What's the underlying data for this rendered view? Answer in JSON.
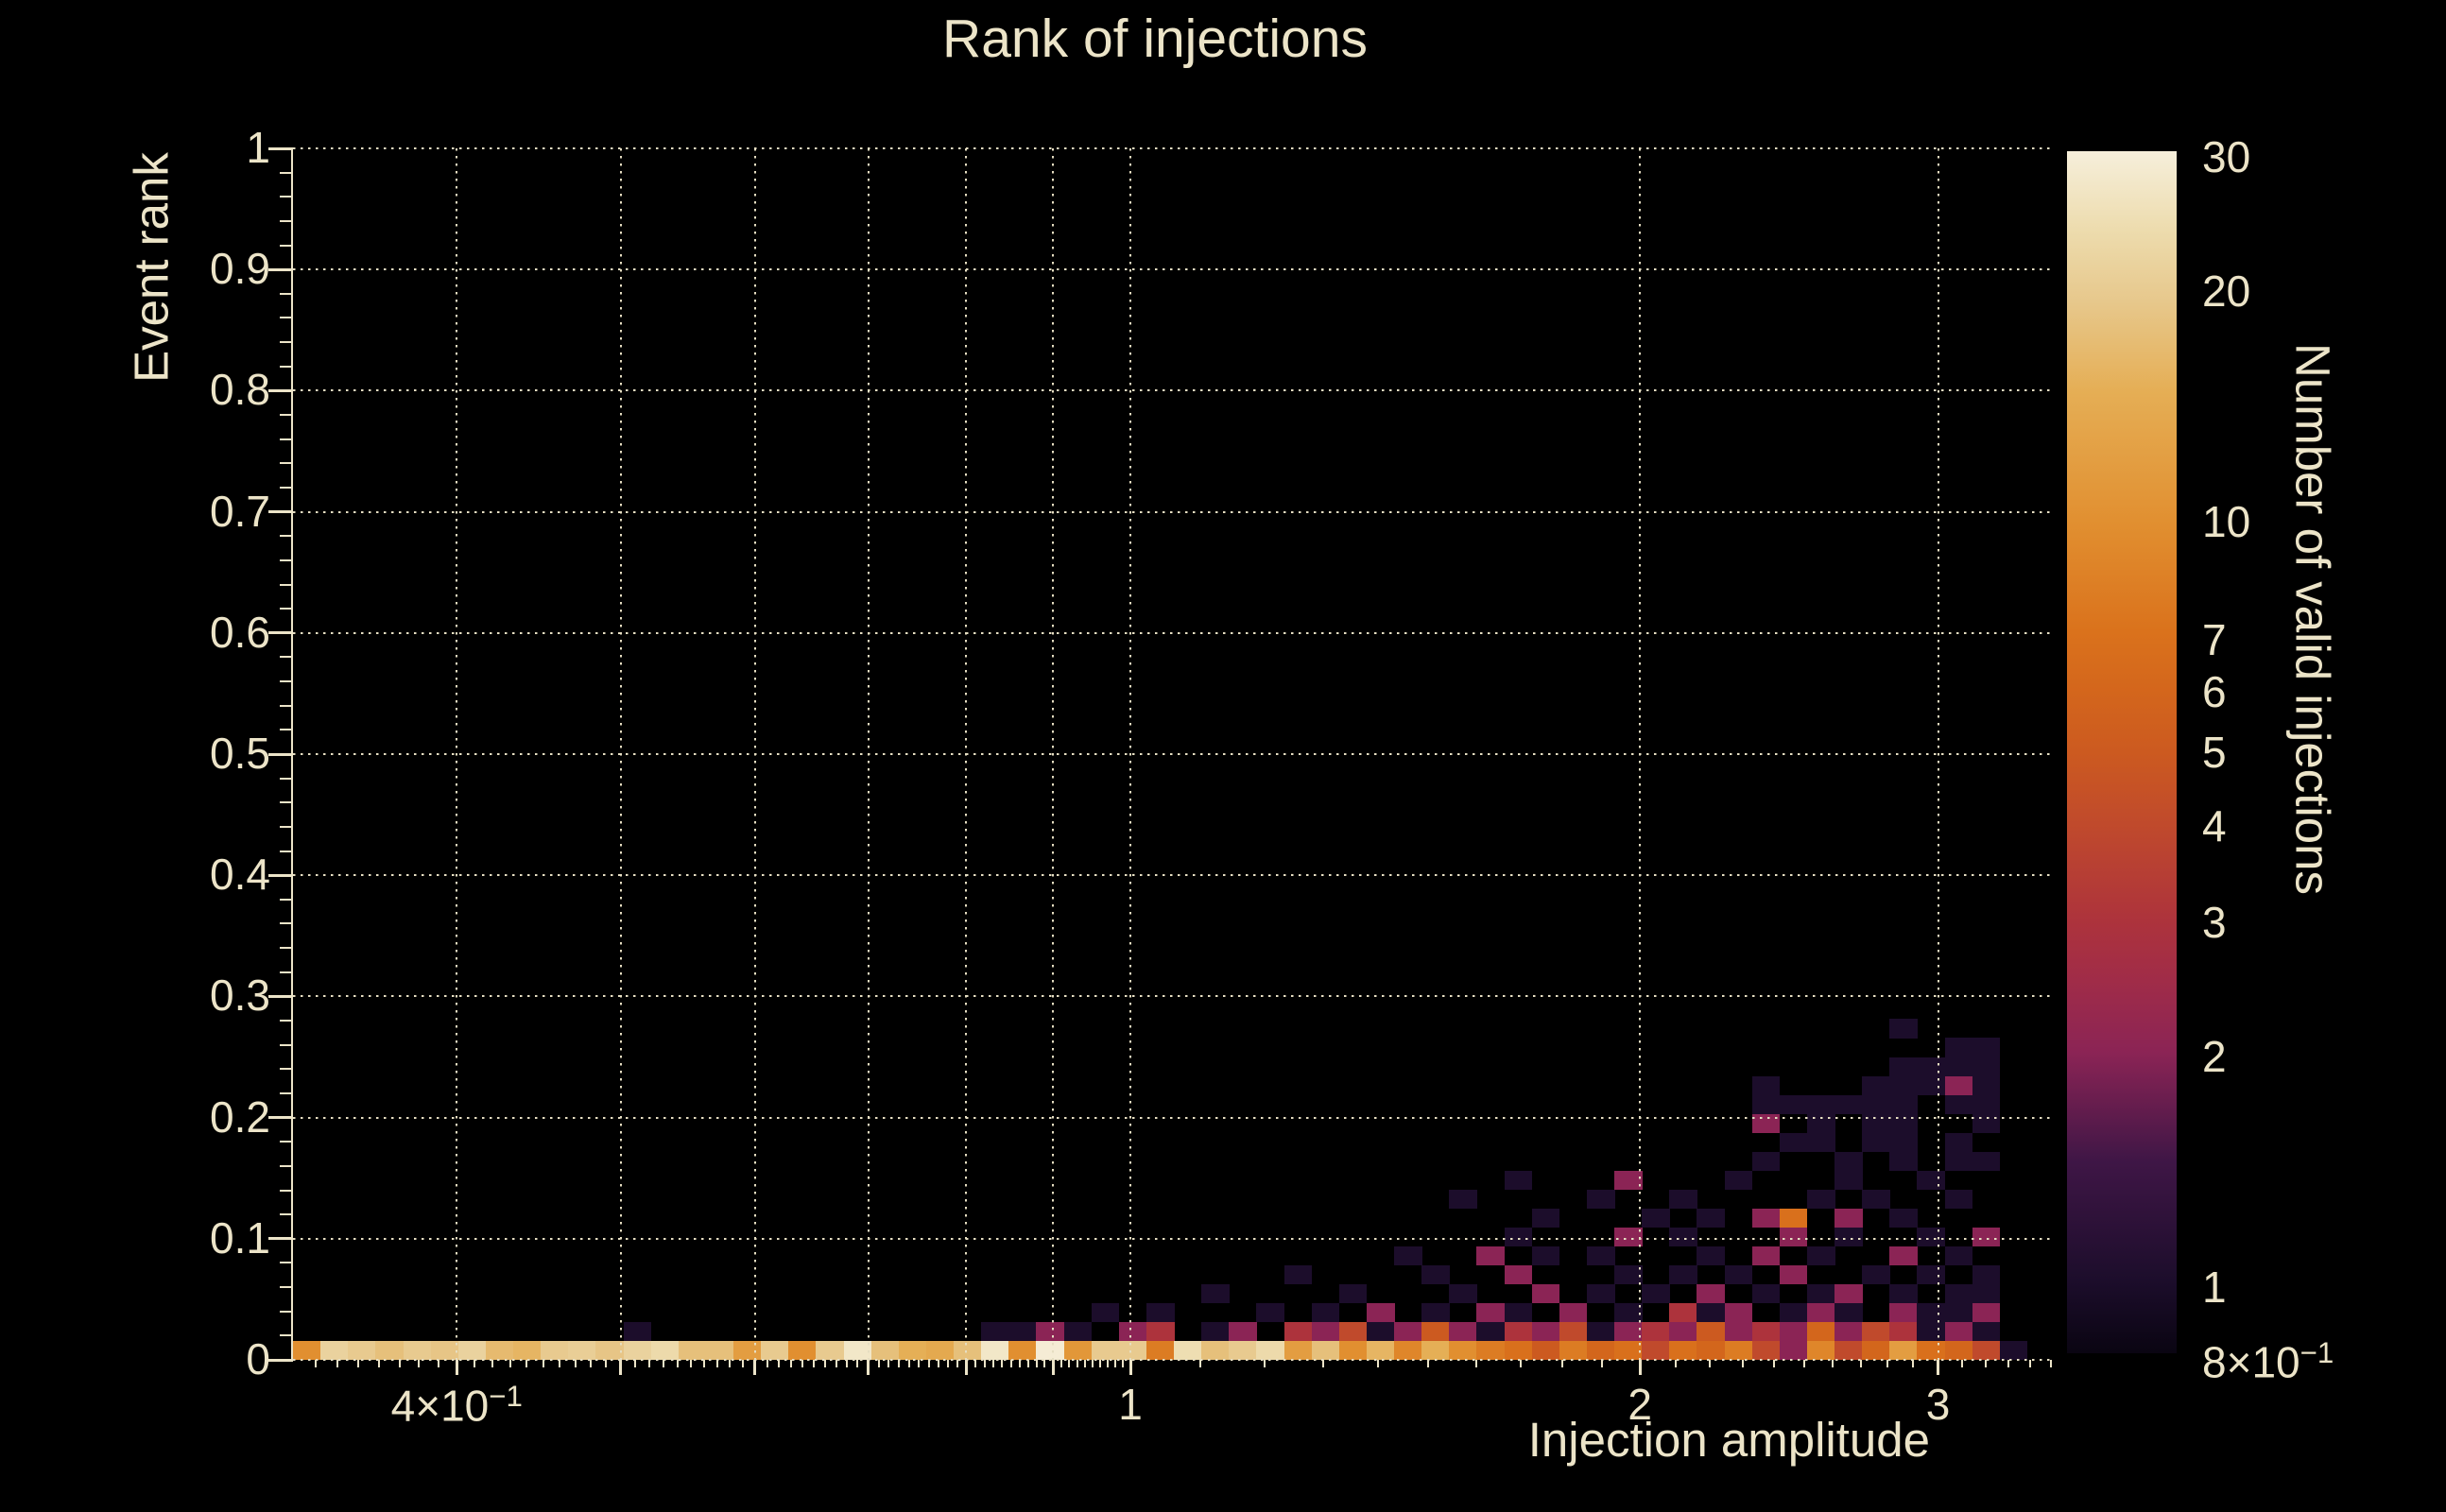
{
  "colors": {
    "background": "#000000",
    "text": "#ece4c8",
    "grid": "#e6dec2",
    "axis": "#ece4c8",
    "bar_tick": "#000000"
  },
  "chart_data": {
    "type": "heatmap",
    "title": "Rank of injections",
    "xlabel": "Injection amplitude",
    "ylabel": "Event rank",
    "zlabel": "Number of valid injections",
    "x_scale": "log",
    "x_range": [
      0.32,
      3.52
    ],
    "y_range": [
      0,
      1
    ],
    "z_scale": "log",
    "z_range": [
      0.8,
      31
    ],
    "n_bins_x": 64,
    "n_bins_y": 64,
    "grid_on": true,
    "x_ticks": [
      {
        "v": 0.4,
        "base": "4×10",
        "exp": "−1"
      },
      {
        "v": 1,
        "base": "1",
        "exp": ""
      },
      {
        "v": 2,
        "base": "2",
        "exp": ""
      },
      {
        "v": 3,
        "base": "3",
        "exp": ""
      }
    ],
    "y_ticks": [
      {
        "v": 1,
        "label": "1"
      },
      {
        "v": 0.9,
        "label": "0.9"
      },
      {
        "v": 0.8,
        "label": "0.8"
      },
      {
        "v": 0.7,
        "label": "0.7"
      },
      {
        "v": 0.6,
        "label": "0.6"
      },
      {
        "v": 0.5,
        "label": "0.5"
      },
      {
        "v": 0.4,
        "label": "0.4"
      },
      {
        "v": 0.3,
        "label": "0.3"
      },
      {
        "v": 0.2,
        "label": "0.2"
      },
      {
        "v": 0.1,
        "label": "0.1"
      },
      {
        "v": 0,
        "label": "0"
      }
    ],
    "z_ticks": [
      {
        "v": 30,
        "base": "30",
        "exp": ""
      },
      {
        "v": 20,
        "base": "20",
        "exp": ""
      },
      {
        "v": 10,
        "base": "10",
        "exp": ""
      },
      {
        "v": 9
      },
      {
        "v": 8
      },
      {
        "v": 7,
        "base": "7",
        "exp": ""
      },
      {
        "v": 6,
        "base": "6",
        "exp": ""
      },
      {
        "v": 5,
        "base": "5",
        "exp": ""
      },
      {
        "v": 4,
        "base": "4",
        "exp": ""
      },
      {
        "v": 3,
        "base": "3",
        "exp": ""
      },
      {
        "v": 2,
        "base": "2",
        "exp": ""
      },
      {
        "v": 1,
        "base": "1",
        "exp": ""
      },
      {
        "v": 0.9
      },
      {
        "v": 0.8,
        "base": "8×10",
        "exp": "−1"
      }
    ],
    "grid_x_values": [
      0.4,
      0.5,
      0.6,
      0.7,
      0.8,
      0.9,
      1,
      2,
      3
    ],
    "grid_y_values": [
      0,
      0.1,
      0.2,
      0.3,
      0.4,
      0.5,
      0.6,
      0.7,
      0.8,
      0.9,
      1
    ],
    "palette_stops": [
      {
        "t": 0.0,
        "color": "#0a0512"
      },
      {
        "t": 0.06,
        "color": "#1c0d2b"
      },
      {
        "t": 0.16,
        "color": "#3f1646"
      },
      {
        "t": 0.25,
        "color": "#8b2455"
      },
      {
        "t": 0.31,
        "color": "#a02c48"
      },
      {
        "t": 0.36,
        "color": "#ad333c"
      },
      {
        "t": 0.44,
        "color": "#c04a2c"
      },
      {
        "t": 0.5,
        "color": "#cc5a20"
      },
      {
        "t": 0.555,
        "color": "#d4671c"
      },
      {
        "t": 0.6,
        "color": "#da721c"
      },
      {
        "t": 0.69,
        "color": "#e18f30"
      },
      {
        "t": 0.8,
        "color": "#e5ae55"
      },
      {
        "t": 0.875,
        "color": "#e7c88c"
      },
      {
        "t": 0.935,
        "color": "#eddcae"
      },
      {
        "t": 1.0,
        "color": "#f6efdb"
      }
    ],
    "bottom_row": [
      10,
      22,
      20,
      18,
      20,
      19,
      22,
      17,
      16,
      20,
      21,
      19,
      22,
      24,
      18,
      18,
      12,
      20,
      10,
      20,
      28,
      18,
      15,
      14,
      18,
      28,
      10,
      30,
      11,
      20,
      20,
      8,
      25,
      18,
      20,
      24,
      12,
      18,
      10,
      16,
      9,
      15,
      10,
      8,
      7,
      5,
      8,
      6,
      7,
      4,
      7,
      6,
      8,
      4,
      2,
      9,
      4,
      6,
      12,
      7,
      6,
      4,
      1,
      0
    ],
    "cells": [
      [
        12,
        1,
        1
      ],
      [
        25,
        1,
        1
      ],
      [
        26,
        1,
        1
      ],
      [
        27,
        1,
        2
      ],
      [
        28,
        1,
        1
      ],
      [
        30,
        1,
        2
      ],
      [
        31,
        1,
        3
      ],
      [
        33,
        1,
        1
      ],
      [
        34,
        1,
        2
      ],
      [
        36,
        1,
        3
      ],
      [
        37,
        1,
        2
      ],
      [
        38,
        1,
        4
      ],
      [
        39,
        1,
        1
      ],
      [
        40,
        1,
        2
      ],
      [
        41,
        1,
        5
      ],
      [
        42,
        1,
        2
      ],
      [
        43,
        1,
        1
      ],
      [
        44,
        1,
        3
      ],
      [
        45,
        1,
        2
      ],
      [
        46,
        1,
        4
      ],
      [
        47,
        1,
        1
      ],
      [
        48,
        1,
        2
      ],
      [
        49,
        1,
        3
      ],
      [
        50,
        1,
        2
      ],
      [
        51,
        1,
        5
      ],
      [
        52,
        1,
        2
      ],
      [
        53,
        1,
        3
      ],
      [
        54,
        1,
        2
      ],
      [
        55,
        1,
        6
      ],
      [
        56,
        1,
        2
      ],
      [
        57,
        1,
        4
      ],
      [
        58,
        1,
        3
      ],
      [
        59,
        1,
        1
      ],
      [
        60,
        1,
        2
      ],
      [
        61,
        1,
        1
      ],
      [
        29,
        2,
        1
      ],
      [
        31,
        2,
        1
      ],
      [
        35,
        2,
        1
      ],
      [
        37,
        2,
        1
      ],
      [
        39,
        2,
        2
      ],
      [
        41,
        2,
        1
      ],
      [
        43,
        2,
        2
      ],
      [
        44,
        2,
        1
      ],
      [
        46,
        2,
        2
      ],
      [
        48,
        2,
        1
      ],
      [
        50,
        2,
        3
      ],
      [
        51,
        2,
        1
      ],
      [
        52,
        2,
        2
      ],
      [
        54,
        2,
        1
      ],
      [
        55,
        2,
        2
      ],
      [
        56,
        2,
        1
      ],
      [
        58,
        2,
        2
      ],
      [
        59,
        2,
        1
      ],
      [
        60,
        2,
        1
      ],
      [
        61,
        2,
        2
      ],
      [
        33,
        3,
        1
      ],
      [
        38,
        3,
        1
      ],
      [
        42,
        3,
        1
      ],
      [
        45,
        3,
        2
      ],
      [
        47,
        3,
        1
      ],
      [
        49,
        3,
        1
      ],
      [
        51,
        3,
        2
      ],
      [
        53,
        3,
        1
      ],
      [
        55,
        3,
        1
      ],
      [
        56,
        3,
        2
      ],
      [
        58,
        3,
        1
      ],
      [
        60,
        3,
        1
      ],
      [
        61,
        3,
        1
      ],
      [
        36,
        4,
        1
      ],
      [
        41,
        4,
        1
      ],
      [
        44,
        4,
        2
      ],
      [
        48,
        4,
        1
      ],
      [
        50,
        4,
        1
      ],
      [
        52,
        4,
        1
      ],
      [
        54,
        4,
        2
      ],
      [
        57,
        4,
        1
      ],
      [
        59,
        4,
        1
      ],
      [
        61,
        4,
        1
      ],
      [
        40,
        5,
        1
      ],
      [
        43,
        5,
        2
      ],
      [
        45,
        5,
        1
      ],
      [
        47,
        5,
        1
      ],
      [
        51,
        5,
        1
      ],
      [
        53,
        5,
        2
      ],
      [
        55,
        5,
        1
      ],
      [
        58,
        5,
        2
      ],
      [
        60,
        5,
        1
      ],
      [
        44,
        6,
        1
      ],
      [
        48,
        6,
        2
      ],
      [
        50,
        6,
        1
      ],
      [
        54,
        6,
        2
      ],
      [
        56,
        6,
        1
      ],
      [
        59,
        6,
        1
      ],
      [
        61,
        6,
        2
      ],
      [
        45,
        7,
        1
      ],
      [
        49,
        7,
        1
      ],
      [
        51,
        7,
        1
      ],
      [
        53,
        7,
        2
      ],
      [
        54,
        7,
        7
      ],
      [
        56,
        7,
        2
      ],
      [
        58,
        7,
        1
      ],
      [
        42,
        8,
        1
      ],
      [
        47,
        8,
        1
      ],
      [
        50,
        8,
        1
      ],
      [
        55,
        8,
        1
      ],
      [
        57,
        8,
        1
      ],
      [
        60,
        8,
        1
      ],
      [
        44,
        9,
        1
      ],
      [
        48,
        9,
        2
      ],
      [
        52,
        9,
        1
      ],
      [
        56,
        9,
        1
      ],
      [
        59,
        9,
        1
      ],
      [
        53,
        10,
        1
      ],
      [
        56,
        10,
        1
      ],
      [
        58,
        10,
        1
      ],
      [
        60,
        10,
        1
      ],
      [
        61,
        10,
        1
      ],
      [
        54,
        11,
        1
      ],
      [
        55,
        11,
        1
      ],
      [
        57,
        11,
        1
      ],
      [
        58,
        11,
        1
      ],
      [
        60,
        11,
        1
      ],
      [
        53,
        12,
        2
      ],
      [
        55,
        12,
        1
      ],
      [
        57,
        12,
        1
      ],
      [
        58,
        12,
        1
      ],
      [
        61,
        12,
        1
      ],
      [
        53,
        13,
        1
      ],
      [
        54,
        13,
        1
      ],
      [
        55,
        13,
        1
      ],
      [
        56,
        13,
        1
      ],
      [
        57,
        13,
        1
      ],
      [
        58,
        13,
        1
      ],
      [
        60,
        13,
        1
      ],
      [
        61,
        13,
        1
      ],
      [
        53,
        14,
        1
      ],
      [
        57,
        14,
        1
      ],
      [
        58,
        14,
        1
      ],
      [
        59,
        14,
        1
      ],
      [
        60,
        14,
        2
      ],
      [
        61,
        14,
        1
      ],
      [
        58,
        15,
        1
      ],
      [
        59,
        15,
        1
      ],
      [
        60,
        15,
        1
      ],
      [
        61,
        15,
        1
      ],
      [
        60,
        16,
        1
      ],
      [
        61,
        16,
        1
      ],
      [
        58,
        17,
        1
      ]
    ]
  }
}
